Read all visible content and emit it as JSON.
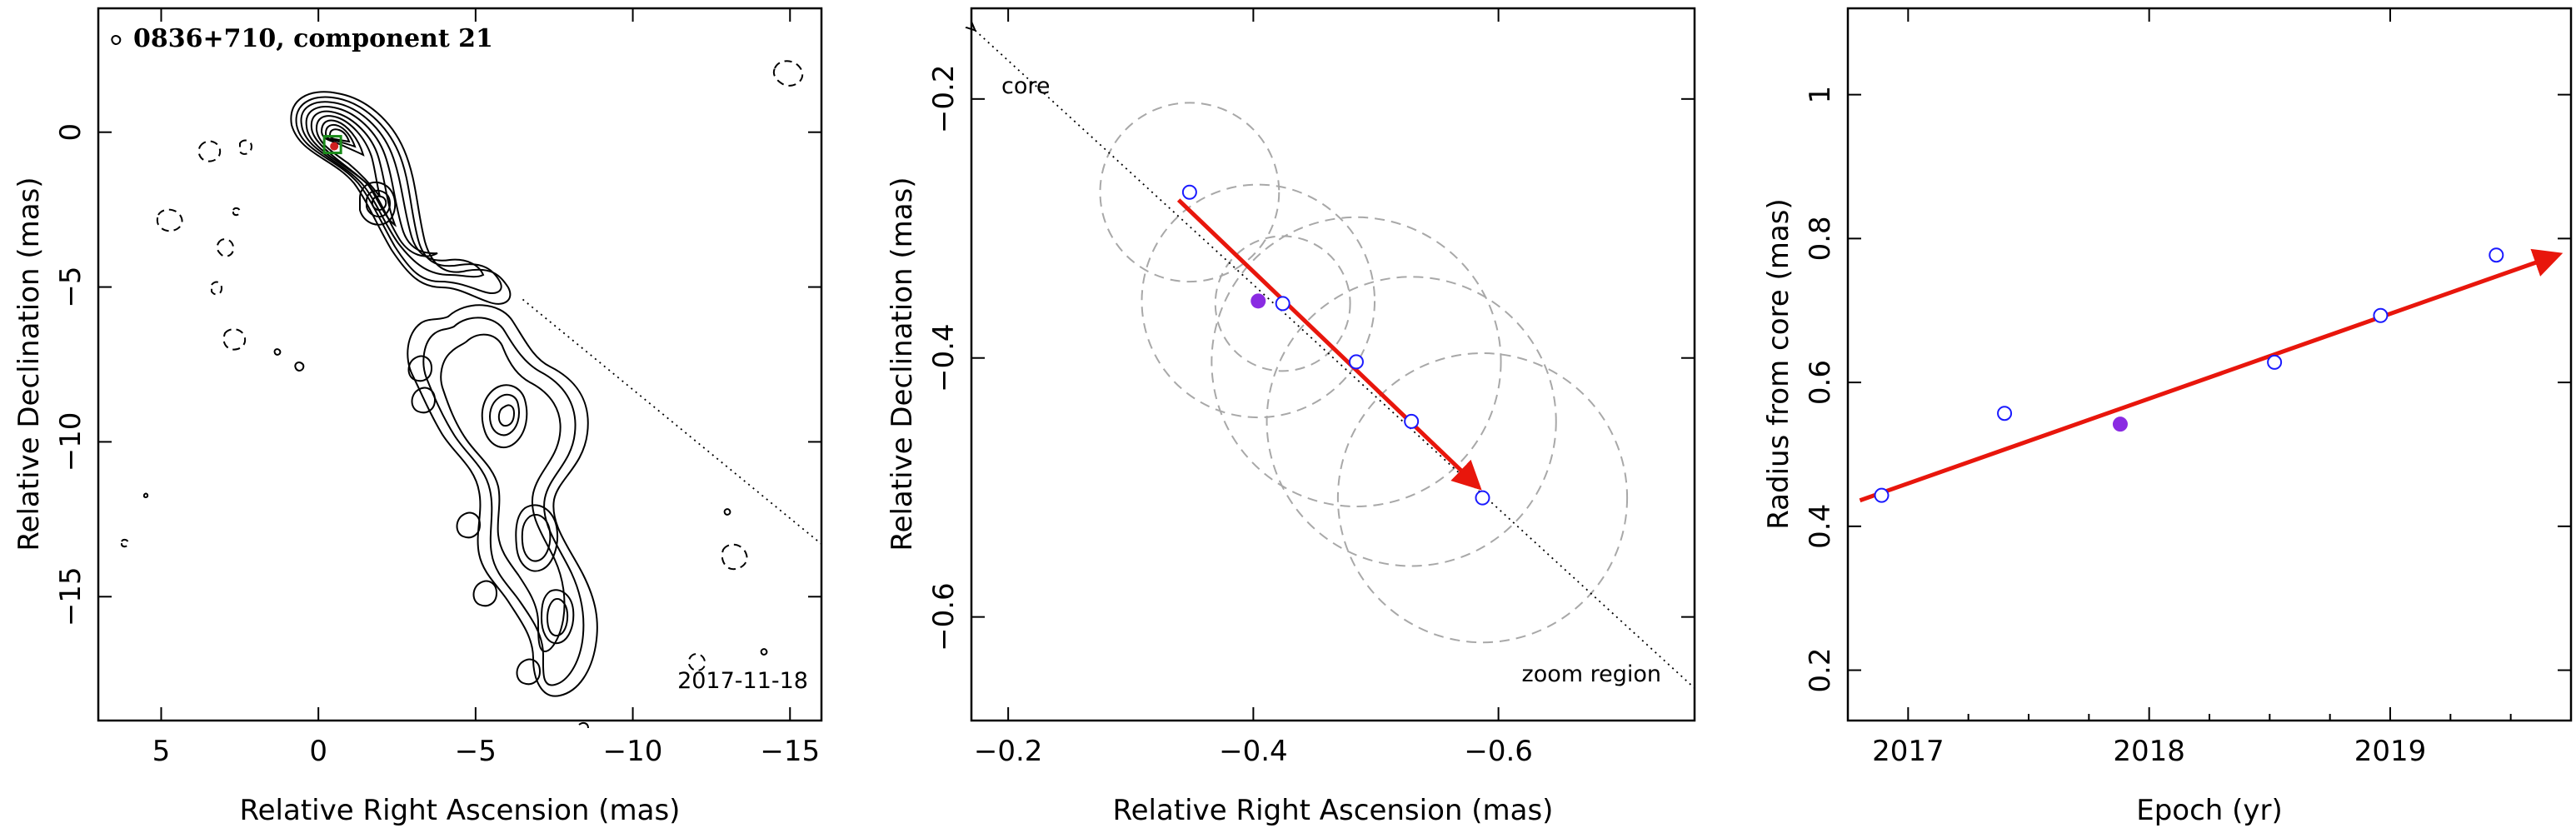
{
  "chart_data": [
    {
      "type": "contour",
      "title": "0836+710, component 21",
      "annotation": "2017-11-18",
      "xlabel": "Relative Right Ascension (mas)",
      "ylabel": "Relative Declination (mas)",
      "xlim": [
        7,
        -16
      ],
      "ylim": [
        -19,
        4
      ],
      "xticks": [
        {
          "v": 5,
          "label": "5"
        },
        {
          "v": 0,
          "label": "0"
        },
        {
          "v": -5,
          "label": "−5"
        },
        {
          "v": -10,
          "label": "−10"
        },
        {
          "v": -15,
          "label": "−15"
        }
      ],
      "yticks": [
        {
          "v": 0,
          "label": "0"
        },
        {
          "v": -5,
          "label": "−5"
        },
        {
          "v": -10,
          "label": "−10"
        },
        {
          "v": -15,
          "label": "−15"
        }
      ],
      "marked_component": {
        "x": -0.45,
        "y": -0.4
      },
      "direction_line": {
        "from": {
          "x": -6.5,
          "y": -5.4
        },
        "to": {
          "x": -16,
          "y": -13.3
        }
      },
      "colors": {
        "marker_box": "#1a8a1a",
        "marker_dot": "#d02020"
      }
    },
    {
      "type": "scatter",
      "xlabel": "Relative Right Ascension (mas)",
      "ylabel": "Relative Declination (mas)",
      "xlim": [
        -0.17,
        -0.76
      ],
      "ylim": [
        -0.68,
        -0.13
      ],
      "xticks": [
        {
          "v": -0.2,
          "label": "−0.2"
        },
        {
          "v": -0.4,
          "label": "−0.4"
        },
        {
          "v": -0.6,
          "label": "−0.6"
        }
      ],
      "yticks": [
        {
          "v": -0.2,
          "label": "−0.2"
        },
        {
          "v": -0.4,
          "label": "−0.4"
        },
        {
          "v": -0.6,
          "label": "−0.6"
        }
      ],
      "points": [
        {
          "x": -0.348,
          "y": -0.272,
          "size": 0.073
        },
        {
          "x": -0.424,
          "y": -0.358,
          "size": 0.055
        },
        {
          "x": -0.484,
          "y": -0.403,
          "size": 0.118
        },
        {
          "x": -0.529,
          "y": -0.449,
          "size": 0.118
        },
        {
          "x": -0.587,
          "y": -0.508,
          "size": 0.118
        }
      ],
      "highlight_point": {
        "x": -0.404,
        "y": -0.356,
        "size": 0.095
      },
      "core_label": "core",
      "core_line": {
        "from": {
          "x": -0.173,
          "y": -0.147
        },
        "to": {
          "x": -0.76,
          "y": -0.655
        }
      },
      "fit_arrow": {
        "from": {
          "x": -0.339,
          "y": -0.278
        },
        "to": {
          "x": -0.584,
          "y": -0.5
        }
      },
      "region_label": "zoom region",
      "colors": {
        "open_point": "#1a1aff",
        "filled_point": "#8a2be2",
        "arrow": "#e8160c",
        "circle": "#a8a8a8"
      }
    },
    {
      "type": "scatter",
      "xlabel": "Epoch (yr)",
      "ylabel": "Radius from core (mas)",
      "xlim": [
        2016.75,
        2019.75
      ],
      "ylim": [
        0.13,
        1.12
      ],
      "xticks": [
        {
          "v": 2017,
          "label": "2017"
        },
        {
          "v": 2018,
          "label": "2018"
        },
        {
          "v": 2019,
          "label": "2019"
        }
      ],
      "yticks": [
        {
          "v": 0.2,
          "label": "0.2"
        },
        {
          "v": 0.4,
          "label": "0.4"
        },
        {
          "v": 0.6,
          "label": "0.6"
        },
        {
          "v": 0.8,
          "label": "0.8"
        },
        {
          "v": 1.0,
          "label": "1"
        }
      ],
      "points": [
        {
          "x": 2016.89,
          "y": 0.443
        },
        {
          "x": 2017.4,
          "y": 0.557
        },
        {
          "x": 2018.52,
          "y": 0.628
        },
        {
          "x": 2018.96,
          "y": 0.693
        },
        {
          "x": 2019.44,
          "y": 0.777
        }
      ],
      "highlight_point": {
        "x": 2017.88,
        "y": 0.542
      },
      "fit_arrow": {
        "from": {
          "x": 2016.8,
          "y": 0.436
        },
        "to": {
          "x": 2019.7,
          "y": 0.778
        }
      },
      "colors": {
        "open_point": "#1a1aff",
        "filled_point": "#8a2be2",
        "arrow": "#e8160c"
      }
    }
  ]
}
